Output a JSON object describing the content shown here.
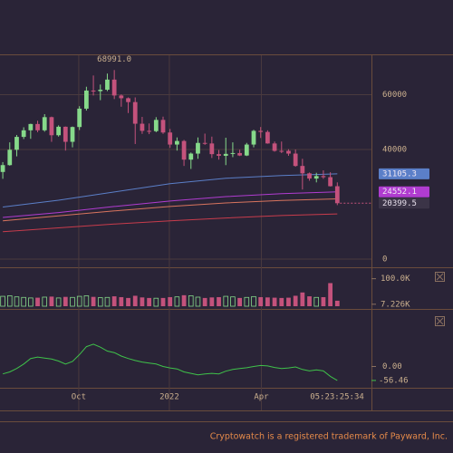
{
  "chart_data": [
    {
      "type": "candlestick",
      "open": [
        31800,
        34300,
        39900,
        44600,
        47000,
        49300,
        47000,
        51800,
        45200,
        48300,
        42800,
        48200,
        54900,
        61500,
        61300,
        61800,
        65500,
        59700,
        58700,
        57300,
        49400,
        46800,
        46700,
        50800,
        46200,
        41800,
        43100,
        36300,
        38500,
        42400,
        42200,
        38300,
        37700,
        38400,
        38700,
        37800,
        41800,
        46800,
        46400,
        42200,
        39500,
        39500,
        38500,
        34000,
        31300,
        29400,
        30300,
        29900,
        26600
      ],
      "high": [
        35400,
        42600,
        45300,
        48100,
        49400,
        50500,
        52900,
        52000,
        48800,
        48400,
        48400,
        55800,
        62900,
        67000,
        63700,
        67700,
        68991,
        60100,
        59000,
        59000,
        51900,
        49500,
        51800,
        52000,
        47500,
        44400,
        43500,
        38900,
        44400,
        45800,
        44700,
        39800,
        44300,
        42600,
        39900,
        42400,
        47200,
        48200,
        47000,
        42900,
        42900,
        40100,
        40000,
        36600,
        31600,
        31500,
        32400,
        31700,
        28000
      ],
      "low": [
        29300,
        34100,
        37500,
        43800,
        43900,
        46300,
        46500,
        42800,
        44700,
        39600,
        40800,
        47100,
        54200,
        59700,
        58000,
        61300,
        58400,
        55600,
        53300,
        42000,
        45700,
        45600,
        46300,
        45700,
        40600,
        39600,
        34000,
        32900,
        36600,
        41700,
        36900,
        36300,
        34300,
        37200,
        37600,
        37600,
        40800,
        44200,
        42100,
        39200,
        38700,
        37700,
        33700,
        25400,
        28600,
        28000,
        29300,
        26500,
        19700
      ],
      "close": [
        34300,
        39900,
        44600,
        47000,
        49300,
        47000,
        51800,
        45200,
        48300,
        42800,
        48200,
        54900,
        61500,
        61300,
        61800,
        65500,
        59700,
        58700,
        57300,
        49400,
        46800,
        46700,
        50800,
        46200,
        41800,
        43100,
        36300,
        38500,
        42400,
        42200,
        38300,
        37700,
        38400,
        38700,
        37800,
        41800,
        46800,
        46400,
        42200,
        39500,
        39400,
        38500,
        34000,
        31300,
        29400,
        30300,
        29900,
        26600,
        20399.5
      ],
      "up_color": "#86d98a",
      "down_color": "#c4527c",
      "xlim": [
        -0.4,
        52.9
      ],
      "ylim": [
        -2975,
        74380
      ],
      "yticks": [
        0,
        40000,
        60000
      ],
      "xticks": [
        {
          "value": 10.9,
          "label": "Oct"
        },
        {
          "value": 23.9,
          "label": "2022"
        },
        {
          "value": 37.1,
          "label": "Apr"
        }
      ],
      "max_label": "68991.0",
      "lines": [
        {
          "color": "#5b7fc8",
          "x": [
            0,
            8,
            16,
            24,
            32,
            40,
            48
          ],
          "values": [
            19000,
            21500,
            24500,
            27500,
            29500,
            30500,
            31105.3
          ]
        },
        {
          "color": "#b03cd0",
          "x": [
            0,
            8,
            16,
            24,
            32,
            40,
            48
          ],
          "values": [
            15200,
            17000,
            19200,
            21200,
            22800,
            23900,
            24552.1
          ]
        },
        {
          "color": "#d8745e",
          "x": [
            0,
            8,
            16,
            24,
            32,
            40,
            48
          ],
          "values": [
            14000,
            15800,
            17600,
            19200,
            20500,
            21400,
            22000
          ]
        },
        {
          "color": "#c83c4c",
          "x": [
            0,
            8,
            16,
            24,
            32,
            40,
            48
          ],
          "values": [
            10000,
            11400,
            12800,
            14000,
            15000,
            15900,
            16500
          ]
        }
      ]
    },
    {
      "type": "bar",
      "values": [
        36000,
        38000,
        34000,
        32000,
        30000,
        31000,
        33000,
        35000,
        30000,
        34000,
        32000,
        36000,
        38000,
        34000,
        31000,
        32000,
        36000,
        33000,
        30000,
        38000,
        32000,
        30000,
        29000,
        30000,
        33000,
        34000,
        40000,
        38000,
        33000,
        30000,
        32000,
        33000,
        36000,
        34000,
        30000,
        32000,
        35000,
        33000,
        32000,
        31000,
        30000,
        31000,
        38000,
        50000,
        36000,
        32000,
        33000,
        84000,
        20000
      ],
      "ylim": [
        0,
        135000
      ],
      "yticks": [
        {
          "value": 100000,
          "label": "100.0K"
        },
        {
          "value": 7226,
          "label": "7.226K"
        }
      ]
    },
    {
      "type": "line",
      "color": "#3fc24a",
      "values": [
        -30,
        -22,
        -8,
        10,
        32,
        38,
        34,
        30,
        22,
        10,
        20,
        48,
        80,
        90,
        78,
        62,
        56,
        42,
        32,
        24,
        18,
        14,
        10,
        0,
        -6,
        -10,
        -22,
        -28,
        -34,
        -30,
        -28,
        -30,
        -19,
        -12,
        -8,
        -5,
        0,
        4,
        2,
        -4,
        -8,
        -6,
        -2,
        -12,
        -18,
        -14,
        -18,
        -40,
        -56.46
      ],
      "ylim": [
        -86,
        225
      ],
      "yticks": [
        {
          "value": 0,
          "label": "0.00"
        }
      ]
    }
  ],
  "time_label": "05:23:25:34",
  "footer": "Cryptowatch is a registered trademark of Payward, Inc."
}
